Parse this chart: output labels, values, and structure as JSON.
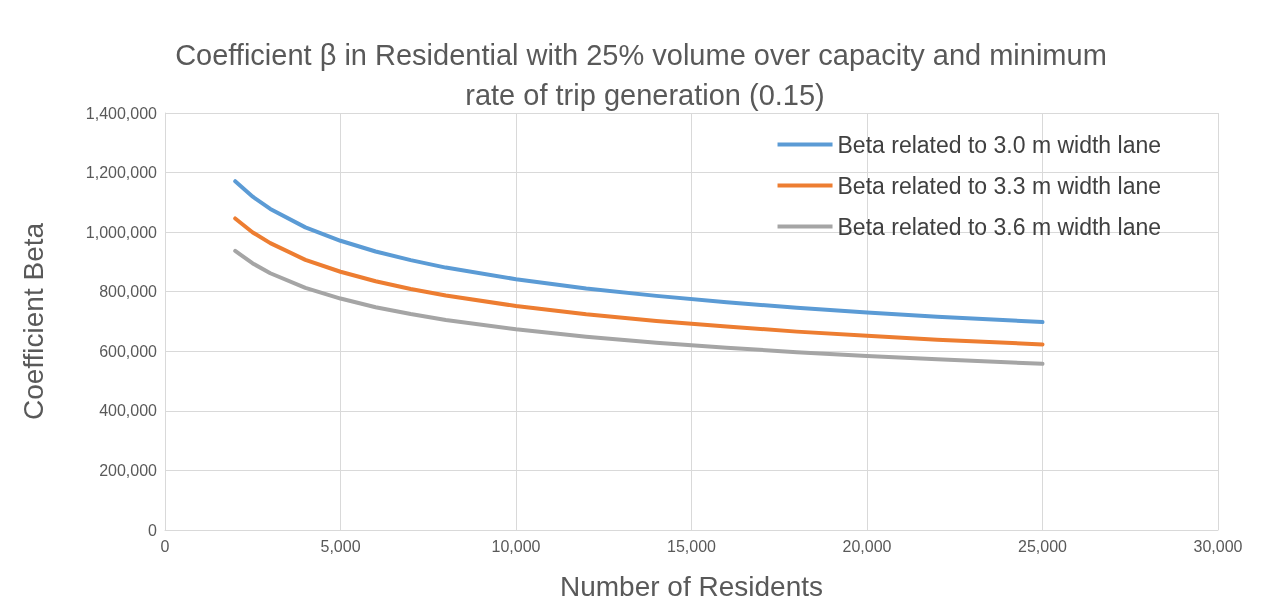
{
  "chart_data": {
    "type": "line",
    "title": "Coefficient β in Residential with 25% volume over capacity and minimum rate of trip generation (0.15)",
    "xlabel": "Number of Residents",
    "ylabel": "Coefficient Beta",
    "x": [
      2000,
      2500,
      3000,
      4000,
      5000,
      6000,
      7000,
      8000,
      10000,
      12000,
      14000,
      16000,
      18000,
      20000,
      22000,
      25000
    ],
    "series": [
      {
        "name": "Beta related to 3.0 m width lane",
        "color": "#5b9bd5",
        "values": [
          1171000,
          1119000,
          1078000,
          1016000,
          971000,
          935000,
          906000,
          881000,
          842000,
          811000,
          786000,
          765000,
          746000,
          730000,
          716000,
          698000
        ]
      },
      {
        "name": "Beta related to 3.3 m width lane",
        "color": "#ed7d31",
        "values": [
          1046000,
          999000,
          963000,
          907000,
          867000,
          835000,
          809000,
          787000,
          752000,
          724000,
          702000,
          683000,
          666000,
          652000,
          639000,
          623000
        ]
      },
      {
        "name": "Beta related to 3.6 m width lane",
        "color": "#a5a5a5",
        "values": [
          937000,
          895000,
          862000,
          813000,
          777000,
          748000,
          725000,
          705000,
          674000,
          649000,
          629000,
          612000,
          597000,
          584000,
          573000,
          558000
        ]
      }
    ],
    "xlim": [
      0,
      30000
    ],
    "xticks": [
      0,
      {
        "value": 5000,
        "label": "5,000"
      },
      {
        "value": 10000,
        "label": "10,000"
      },
      {
        "value": 15000,
        "label": "15,000"
      },
      {
        "value": 20000,
        "label": "20,000"
      },
      {
        "value": 25000,
        "label": "25,000"
      },
      {
        "value": 30000,
        "label": "30,000"
      }
    ],
    "ylim": [
      0,
      1400000
    ],
    "yticks": [
      0,
      {
        "value": 200000,
        "label": "200,000"
      },
      {
        "value": 400000,
        "label": "400,000"
      },
      {
        "value": 600000,
        "label": "600,000"
      },
      {
        "value": 800000,
        "label": "800,000"
      },
      {
        "value": 1000000,
        "label": "1,000,000"
      },
      {
        "value": 1200000,
        "label": "1,200,000"
      },
      {
        "value": 1400000,
        "label": "1,400,000"
      }
    ],
    "grid": true,
    "legend": "top right",
    "marker": "none",
    "line_style": "solid"
  }
}
